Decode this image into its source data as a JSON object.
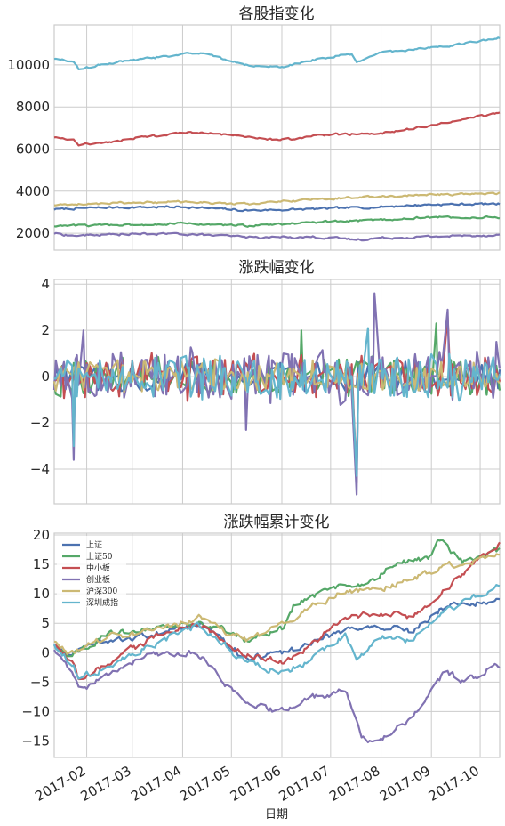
{
  "chart_data": [
    {
      "type": "line",
      "title": "各股指变化",
      "ylim": [
        1200,
        11900
      ],
      "yticks": [
        2000,
        4000,
        6000,
        8000,
        10000
      ],
      "yticklabels": [
        "2000",
        "4000",
        "6000",
        "8000",
        "10000"
      ],
      "xlim": [
        "2017-01-12",
        "2017-10-13"
      ],
      "grid": true,
      "series": [
        {
          "name": "上证",
          "color": "#4c72b0",
          "knots": [
            [
              "2017-01-12",
              3140
            ],
            [
              "2017-02-15",
              3230
            ],
            [
              "2017-04-01",
              3260
            ],
            [
              "2017-05-10",
              3090
            ],
            [
              "2017-06-15",
              3140
            ],
            [
              "2017-07-25",
              3240
            ],
            [
              "2017-09-01",
              3370
            ],
            [
              "2017-10-13",
              3400
            ]
          ]
        },
        {
          "name": "上证50",
          "color": "#55a868",
          "knots": [
            [
              "2017-01-12",
              2350
            ],
            [
              "2017-02-15",
              2400
            ],
            [
              "2017-04-01",
              2460
            ],
            [
              "2017-05-10",
              2360
            ],
            [
              "2017-06-15",
              2480
            ],
            [
              "2017-07-25",
              2620
            ],
            [
              "2017-09-01",
              2760
            ],
            [
              "2017-10-13",
              2750
            ]
          ]
        },
        {
          "name": "中小板",
          "color": "#c44e52",
          "knots": [
            [
              "2017-01-12",
              6580
            ],
            [
              "2017-01-24",
              6440
            ],
            [
              "2017-01-27",
              6200
            ],
            [
              "2017-02-20",
              6400
            ],
            [
              "2017-03-10",
              6600
            ],
            [
              "2017-04-10",
              6820
            ],
            [
              "2017-05-10",
              6560
            ],
            [
              "2017-06-01",
              6450
            ],
            [
              "2017-07-01",
              6700
            ],
            [
              "2017-08-01",
              6750
            ],
            [
              "2017-09-01",
              7100
            ],
            [
              "2017-10-13",
              7750
            ]
          ]
        },
        {
          "name": "创业板",
          "color": "#8172b2",
          "knots": [
            [
              "2017-01-12",
              1990
            ],
            [
              "2017-01-24",
              1880
            ],
            [
              "2017-02-20",
              1950
            ],
            [
              "2017-04-01",
              1970
            ],
            [
              "2017-05-15",
              1800
            ],
            [
              "2017-06-20",
              1830
            ],
            [
              "2017-07-17",
              1700
            ],
            [
              "2017-08-01",
              1780
            ],
            [
              "2017-09-15",
              1870
            ],
            [
              "2017-10-13",
              1920
            ]
          ]
        },
        {
          "name": "沪深300",
          "color": "#ccb974",
          "knots": [
            [
              "2017-01-12",
              3350
            ],
            [
              "2017-02-15",
              3420
            ],
            [
              "2017-04-01",
              3500
            ],
            [
              "2017-05-10",
              3380
            ],
            [
              "2017-06-15",
              3580
            ],
            [
              "2017-07-25",
              3730
            ],
            [
              "2017-09-01",
              3830
            ],
            [
              "2017-10-13",
              3920
            ]
          ]
        },
        {
          "name": "深圳成指",
          "color": "#64b5cd",
          "knots": [
            [
              "2017-01-12",
              10300
            ],
            [
              "2017-01-24",
              10180
            ],
            [
              "2017-01-27",
              9800
            ],
            [
              "2017-02-15",
              10100
            ],
            [
              "2017-03-10",
              10300
            ],
            [
              "2017-04-10",
              10600
            ],
            [
              "2017-05-10",
              10000
            ],
            [
              "2017-06-01",
              9900
            ],
            [
              "2017-07-01",
              10400
            ],
            [
              "2017-07-15",
              10500
            ],
            [
              "2017-07-17",
              10100
            ],
            [
              "2017-08-01",
              10600
            ],
            [
              "2017-09-01",
              10800
            ],
            [
              "2017-10-13",
              11300
            ]
          ]
        }
      ]
    },
    {
      "type": "line",
      "title": "涨跌幅变化",
      "ylim": [
        -5.5,
        4.2
      ],
      "yticks": [
        -4,
        -2,
        0,
        2,
        4
      ],
      "yticklabels": [
        "−4",
        "−2",
        "0",
        "2",
        "4"
      ],
      "xlim": [
        "2017-01-12",
        "2017-10-13"
      ],
      "grid": true,
      "series": [
        {
          "name": "上证",
          "color": "#4c72b0",
          "amp": 0.55,
          "spikes": []
        },
        {
          "name": "上证50",
          "color": "#55a868",
          "amp": 0.7,
          "spikes": [
            [
              "2017-06-13",
              2.0
            ],
            [
              "2017-09-04",
              2.3
            ]
          ]
        },
        {
          "name": "中小板",
          "color": "#c44e52",
          "amp": 0.85,
          "spikes": [
            [
              "2017-07-17",
              -4.6
            ],
            [
              "2017-09-11",
              2.6
            ]
          ]
        },
        {
          "name": "创业板",
          "color": "#8172b2",
          "amp": 1.0,
          "spikes": [
            [
              "2017-01-24",
              -3.6
            ],
            [
              "2017-01-30",
              2.0
            ],
            [
              "2017-05-10",
              -2.3
            ],
            [
              "2017-07-17",
              -5.1
            ],
            [
              "2017-07-28",
              3.6
            ],
            [
              "2017-09-11",
              2.9
            ],
            [
              "2017-10-11",
              1.5
            ]
          ]
        },
        {
          "name": "沪深300",
          "color": "#ccb974",
          "amp": 0.6,
          "spikes": []
        },
        {
          "name": "深圳成指",
          "color": "#64b5cd",
          "amp": 0.85,
          "spikes": [
            [
              "2017-01-24",
              -3.0
            ],
            [
              "2017-07-17",
              -4.3
            ],
            [
              "2017-07-24",
              2.1
            ]
          ]
        }
      ]
    },
    {
      "type": "line",
      "title": "涨跌幅累计变化",
      "ylim": [
        -17.8,
        20.3
      ],
      "yticks": [
        -15,
        -10,
        -5,
        0,
        5,
        10,
        15,
        20
      ],
      "yticklabels": [
        "−15",
        "−10",
        "−5",
        "0",
        "5",
        "10",
        "15",
        "20"
      ],
      "xlim": [
        "2017-01-12",
        "2017-10-13"
      ],
      "xticks": [
        "2017-02-01",
        "2017-03-01",
        "2017-04-01",
        "2017-05-01",
        "2017-06-01",
        "2017-07-01",
        "2017-08-01",
        "2017-09-01",
        "2017-10-01"
      ],
      "xticklabels": [
        "2017-02",
        "2017-03",
        "2017-04",
        "2017-05",
        "2017-06",
        "2017-07",
        "2017-08",
        "2017-09",
        "2017-10"
      ],
      "xlabel": "日期",
      "grid": true,
      "legend": "top-left",
      "series": [
        {
          "name": "上证",
          "color": "#4c72b0",
          "knots": [
            [
              "2017-01-12",
              1.5
            ],
            [
              "2017-01-20",
              -0.5
            ],
            [
              "2017-02-15",
              2
            ],
            [
              "2017-03-20",
              3.5
            ],
            [
              "2017-04-12",
              5
            ],
            [
              "2017-05-10",
              -1
            ],
            [
              "2017-06-05",
              0
            ],
            [
              "2017-07-10",
              4
            ],
            [
              "2017-08-01",
              4.5
            ],
            [
              "2017-08-20",
              3.5
            ],
            [
              "2017-09-10",
              8
            ],
            [
              "2017-09-25",
              8.5
            ],
            [
              "2017-10-13",
              9
            ]
          ]
        },
        {
          "name": "上证50",
          "color": "#55a868",
          "knots": [
            [
              "2017-01-12",
              1.5
            ],
            [
              "2017-01-20",
              -0.5
            ],
            [
              "2017-02-15",
              3
            ],
            [
              "2017-03-20",
              4
            ],
            [
              "2017-04-12",
              5.5
            ],
            [
              "2017-05-10",
              2
            ],
            [
              "2017-06-01",
              4
            ],
            [
              "2017-06-08",
              8
            ],
            [
              "2017-07-01",
              10.5
            ],
            [
              "2017-07-25",
              12
            ],
            [
              "2017-08-10",
              15
            ],
            [
              "2017-08-30",
              16
            ],
            [
              "2017-09-05",
              19
            ],
            [
              "2017-09-20",
              15.5
            ],
            [
              "2017-10-13",
              17.5
            ]
          ]
        },
        {
          "name": "中小板",
          "color": "#c44e52",
          "knots": [
            [
              "2017-01-12",
              1.2
            ],
            [
              "2017-01-24",
              -2
            ],
            [
              "2017-01-27",
              -4.5
            ],
            [
              "2017-02-20",
              -1
            ],
            [
              "2017-03-10",
              2
            ],
            [
              "2017-04-10",
              5
            ],
            [
              "2017-05-10",
              -0.5
            ],
            [
              "2017-06-01",
              -1.5
            ],
            [
              "2017-06-20",
              1.5
            ],
            [
              "2017-07-10",
              6
            ],
            [
              "2017-08-01",
              6.5
            ],
            [
              "2017-08-20",
              6
            ],
            [
              "2017-09-15",
              12
            ],
            [
              "2017-09-25",
              15
            ],
            [
              "2017-10-13",
              18.3
            ]
          ]
        },
        {
          "name": "创业板",
          "color": "#8172b2",
          "knots": [
            [
              "2017-01-12",
              0.6
            ],
            [
              "2017-01-24",
              -4
            ],
            [
              "2017-01-27",
              -6.5
            ],
            [
              "2017-02-20",
              -3
            ],
            [
              "2017-03-10",
              -0.5
            ],
            [
              "2017-04-10",
              0
            ],
            [
              "2017-05-10",
              -9
            ],
            [
              "2017-06-01",
              -10
            ],
            [
              "2017-06-20",
              -7.5
            ],
            [
              "2017-07-10",
              -6.5
            ],
            [
              "2017-07-20",
              -14
            ],
            [
              "2017-07-28",
              -15.5
            ],
            [
              "2017-08-20",
              -11
            ],
            [
              "2017-09-10",
              -3
            ],
            [
              "2017-09-20",
              -5
            ],
            [
              "2017-10-05",
              -3
            ],
            [
              "2017-10-13",
              -2
            ]
          ]
        },
        {
          "name": "沪深300",
          "color": "#ccb974",
          "knots": [
            [
              "2017-01-12",
              2
            ],
            [
              "2017-01-20",
              0
            ],
            [
              "2017-02-15",
              2.5
            ],
            [
              "2017-03-20",
              4
            ],
            [
              "2017-04-12",
              6
            ],
            [
              "2017-05-10",
              2
            ],
            [
              "2017-06-01",
              4.5
            ],
            [
              "2017-06-20",
              8
            ],
            [
              "2017-07-10",
              10.5
            ],
            [
              "2017-08-01",
              11
            ],
            [
              "2017-08-20",
              12.5
            ],
            [
              "2017-09-10",
              15
            ],
            [
              "2017-09-25",
              15
            ],
            [
              "2017-10-13",
              17
            ]
          ]
        },
        {
          "name": "深圳成指",
          "color": "#64b5cd",
          "knots": [
            [
              "2017-01-12",
              1.5
            ],
            [
              "2017-01-24",
              -2.5
            ],
            [
              "2017-01-27",
              -4.5
            ],
            [
              "2017-02-20",
              -1.5
            ],
            [
              "2017-03-10",
              1
            ],
            [
              "2017-04-10",
              4.5
            ],
            [
              "2017-05-10",
              -1.5
            ],
            [
              "2017-06-01",
              -3.5
            ],
            [
              "2017-06-20",
              -1
            ],
            [
              "2017-07-10",
              3
            ],
            [
              "2017-07-17",
              -1
            ],
            [
              "2017-08-01",
              2.5
            ],
            [
              "2017-08-20",
              2
            ],
            [
              "2017-09-10",
              7
            ],
            [
              "2017-09-25",
              9
            ],
            [
              "2017-10-13",
              11.3
            ]
          ]
        }
      ]
    }
  ]
}
